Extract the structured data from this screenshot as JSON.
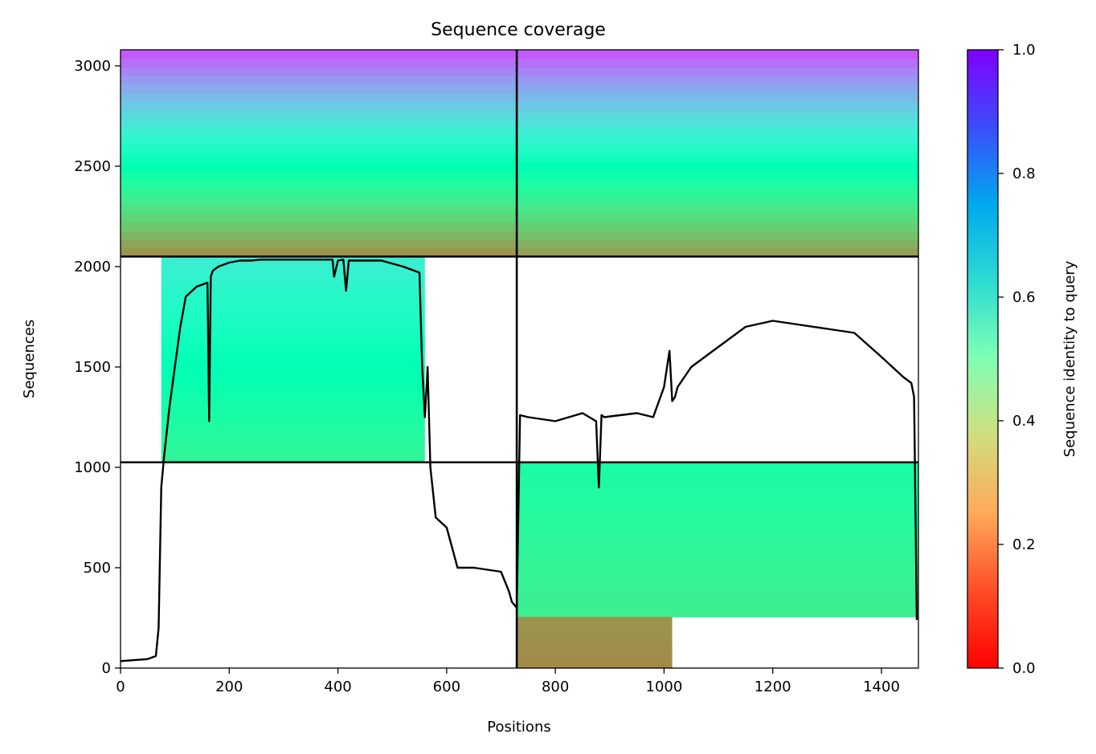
{
  "chart_data": {
    "type": "heatmap",
    "title": "Sequence coverage",
    "xlabel": "Positions",
    "ylabel": "Sequences",
    "xlim": [
      0,
      1468
    ],
    "ylim": [
      0,
      3080
    ],
    "x_ticks": [
      0,
      200,
      400,
      600,
      800,
      1000,
      1200,
      1400
    ],
    "y_ticks": [
      0,
      500,
      1000,
      1500,
      2000,
      2500,
      3000
    ],
    "colorbar": {
      "label": "Sequence identity to query",
      "min": 0.0,
      "max": 1.0,
      "ticks": [
        0.0,
        0.2,
        0.4,
        0.6,
        0.8,
        1.0
      ],
      "tick_labels": [
        "0.0",
        "0.2",
        "0.4",
        "0.6",
        "0.8",
        "1.0"
      ],
      "colormap": "rainbow_r"
    },
    "divider_x": [
      729
    ],
    "divider_y": [
      1025,
      2050
    ],
    "coverage_blocks": [
      {
        "x0": 0,
        "x1": 729,
        "y0": 2050,
        "y1": 3080,
        "identity_top": 0.9,
        "identity_bottom": 0.18
      },
      {
        "x0": 729,
        "x1": 1468,
        "y0": 2050,
        "y1": 3080,
        "identity_top": 0.9,
        "identity_bottom": 0.2
      },
      {
        "x0": 75,
        "x1": 560,
        "y0": 1025,
        "y1": 2050,
        "identity_top": 0.62,
        "identity_bottom": 0.4
      },
      {
        "x0": 729,
        "x1": 1468,
        "y0": 255,
        "y1": 1025,
        "identity_top": 0.45,
        "identity_bottom": 0.38
      },
      {
        "x0": 729,
        "x1": 1015,
        "y0": 0,
        "y1": 255,
        "identity_top": 0.2,
        "identity_bottom": 0.18
      }
    ],
    "coverage_line": {
      "x": [
        0,
        50,
        65,
        70,
        75,
        80,
        90,
        100,
        110,
        120,
        140,
        160,
        163,
        166,
        170,
        180,
        200,
        220,
        240,
        260,
        300,
        350,
        390,
        393,
        400,
        410,
        415,
        420,
        480,
        520,
        550,
        555,
        560,
        565,
        570,
        580,
        600,
        620,
        650,
        700,
        715,
        720,
        729,
        735,
        750,
        800,
        850,
        875,
        880,
        885,
        890,
        950,
        980,
        1000,
        1010,
        1015,
        1020,
        1025,
        1050,
        1100,
        1150,
        1200,
        1250,
        1300,
        1350,
        1400,
        1440,
        1455,
        1460,
        1465
      ],
      "y": [
        35,
        45,
        60,
        200,
        900,
        1050,
        1300,
        1500,
        1700,
        1850,
        1900,
        1920,
        1230,
        1950,
        1980,
        2000,
        2020,
        2030,
        2030,
        2035,
        2035,
        2035,
        2035,
        1950,
        2030,
        2035,
        1880,
        2030,
        2030,
        2000,
        1970,
        1500,
        1250,
        1500,
        1000,
        750,
        700,
        500,
        500,
        480,
        380,
        330,
        300,
        1260,
        1250,
        1230,
        1270,
        1230,
        900,
        1260,
        1250,
        1270,
        1250,
        1400,
        1580,
        1330,
        1350,
        1400,
        1500,
        1600,
        1700,
        1730,
        1710,
        1690,
        1670,
        1550,
        1450,
        1420,
        1350,
        240
      ]
    }
  }
}
